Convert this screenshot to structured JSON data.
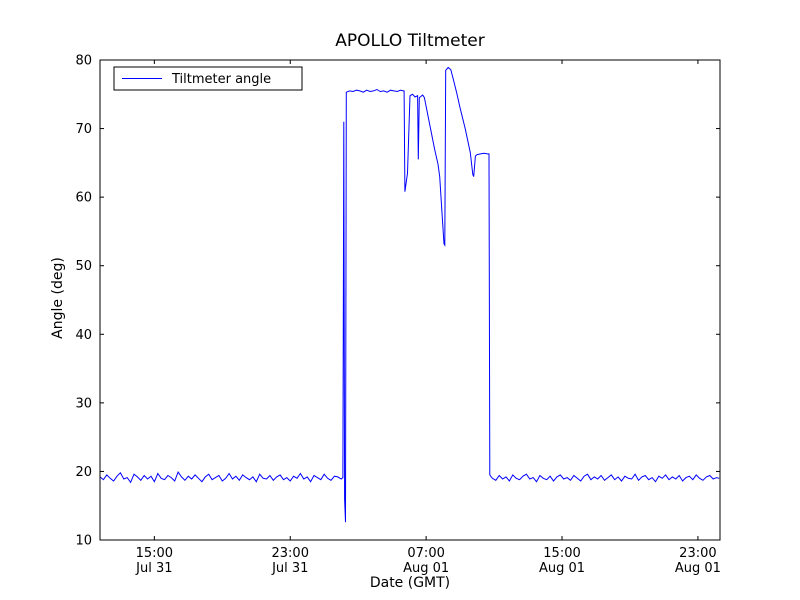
{
  "figure_title": "APOLLO Tiltmeter",
  "colors": {
    "line": "#0000ff",
    "axis": "#000000",
    "background": "#ffffff",
    "legend_fill": "#ffffff"
  },
  "chart_data": {
    "type": "line",
    "title": "APOLLO Tiltmeter",
    "xlabel": "Date (GMT)",
    "ylabel": "Angle (deg)",
    "ylim": [
      10,
      80
    ],
    "xlim_hours": [
      0,
      36.5
    ],
    "grid": false,
    "legend_position": "upper left",
    "y_ticks": [
      10,
      20,
      30,
      40,
      50,
      60,
      70,
      80
    ],
    "x_ticks": [
      {
        "hours": 3.2,
        "time": "15:00",
        "date": "Jul 31"
      },
      {
        "hours": 11.2,
        "time": "23:00",
        "date": "Jul 31"
      },
      {
        "hours": 19.2,
        "time": "07:00",
        "date": "Aug 01"
      },
      {
        "hours": 27.2,
        "time": "15:00",
        "date": "Aug 01"
      },
      {
        "hours": 35.2,
        "time": "23:00",
        "date": "Aug 01"
      }
    ],
    "series": [
      {
        "name": "Tiltmeter angle",
        "color": "#0000ff",
        "points": [
          [
            0,
            19.2
          ],
          [
            0.2,
            18.8
          ],
          [
            0.4,
            19.5
          ],
          [
            0.6,
            19.0
          ],
          [
            0.8,
            18.6
          ],
          [
            1.0,
            19.3
          ],
          [
            1.2,
            19.8
          ],
          [
            1.4,
            18.9
          ],
          [
            1.6,
            19.1
          ],
          [
            1.8,
            18.4
          ],
          [
            2.0,
            19.6
          ],
          [
            2.2,
            19.2
          ],
          [
            2.4,
            18.7
          ],
          [
            2.6,
            19.4
          ],
          [
            2.8,
            18.9
          ],
          [
            3.0,
            19.3
          ],
          [
            3.2,
            18.5
          ],
          [
            3.4,
            19.7
          ],
          [
            3.6,
            19.0
          ],
          [
            3.8,
            18.8
          ],
          [
            4.0,
            19.4
          ],
          [
            4.2,
            19.1
          ],
          [
            4.4,
            18.6
          ],
          [
            4.6,
            19.9
          ],
          [
            4.8,
            19.2
          ],
          [
            5.0,
            18.7
          ],
          [
            5.2,
            19.3
          ],
          [
            5.4,
            18.9
          ],
          [
            5.6,
            19.5
          ],
          [
            5.8,
            19.0
          ],
          [
            6.0,
            18.5
          ],
          [
            6.2,
            19.2
          ],
          [
            6.4,
            19.6
          ],
          [
            6.6,
            18.8
          ],
          [
            6.8,
            19.1
          ],
          [
            7.0,
            19.4
          ],
          [
            7.2,
            18.6
          ],
          [
            7.4,
            19.0
          ],
          [
            7.6,
            19.7
          ],
          [
            7.8,
            18.9
          ],
          [
            8.0,
            19.3
          ],
          [
            8.2,
            18.7
          ],
          [
            8.4,
            19.5
          ],
          [
            8.6,
            19.1
          ],
          [
            8.8,
            18.8
          ],
          [
            9.0,
            19.2
          ],
          [
            9.2,
            18.5
          ],
          [
            9.4,
            19.6
          ],
          [
            9.6,
            19.0
          ],
          [
            9.8,
            18.9
          ],
          [
            10.0,
            19.4
          ],
          [
            10.2,
            18.7
          ],
          [
            10.4,
            19.2
          ],
          [
            10.6,
            19.5
          ],
          [
            10.8,
            18.8
          ],
          [
            11.0,
            19.1
          ],
          [
            11.2,
            18.6
          ],
          [
            11.4,
            19.3
          ],
          [
            11.6,
            19.0
          ],
          [
            11.8,
            19.7
          ],
          [
            12.0,
            18.9
          ],
          [
            12.2,
            19.2
          ],
          [
            12.4,
            18.5
          ],
          [
            12.6,
            19.4
          ],
          [
            12.8,
            19.1
          ],
          [
            13.0,
            18.8
          ],
          [
            13.2,
            19.6
          ],
          [
            13.4,
            19.0
          ],
          [
            13.6,
            18.7
          ],
          [
            13.8,
            19.3
          ],
          [
            14.0,
            19.2
          ],
          [
            14.2,
            18.9
          ],
          [
            14.3,
            19.1
          ],
          [
            14.35,
            71.0
          ],
          [
            14.4,
            16.0
          ],
          [
            14.45,
            12.6
          ],
          [
            14.5,
            75.3
          ],
          [
            14.7,
            75.5
          ],
          [
            14.9,
            75.4
          ],
          [
            15.1,
            75.6
          ],
          [
            15.3,
            75.5
          ],
          [
            15.5,
            75.3
          ],
          [
            15.7,
            75.6
          ],
          [
            15.9,
            75.4
          ],
          [
            16.1,
            75.5
          ],
          [
            16.3,
            75.7
          ],
          [
            16.5,
            75.4
          ],
          [
            16.7,
            75.5
          ],
          [
            16.9,
            75.3
          ],
          [
            17.1,
            75.6
          ],
          [
            17.3,
            75.5
          ],
          [
            17.5,
            75.4
          ],
          [
            17.7,
            75.6
          ],
          [
            17.85,
            75.5
          ],
          [
            17.9,
            75.5
          ],
          [
            17.95,
            60.8
          ],
          [
            18.1,
            63.5
          ],
          [
            18.25,
            74.8
          ],
          [
            18.4,
            75.0
          ],
          [
            18.55,
            74.6
          ],
          [
            18.7,
            74.8
          ],
          [
            18.74,
            65.5
          ],
          [
            18.8,
            74.5
          ],
          [
            19.0,
            74.9
          ],
          [
            19.1,
            74.5
          ],
          [
            19.3,
            72.0
          ],
          [
            19.5,
            69.5
          ],
          [
            19.7,
            67.0
          ],
          [
            19.9,
            64.8
          ],
          [
            20.0,
            63.0
          ],
          [
            20.15,
            57.0
          ],
          [
            20.25,
            53.2
          ],
          [
            20.3,
            53.0
          ],
          [
            20.35,
            78.5
          ],
          [
            20.5,
            78.9
          ],
          [
            20.65,
            78.6
          ],
          [
            20.8,
            77.2
          ],
          [
            21.0,
            75.2
          ],
          [
            21.2,
            73.0
          ],
          [
            21.5,
            70.0
          ],
          [
            21.8,
            66.5
          ],
          [
            21.95,
            63.3
          ],
          [
            22.0,
            63.0
          ],
          [
            22.1,
            66.0
          ],
          [
            22.2,
            66.2
          ],
          [
            22.4,
            66.3
          ],
          [
            22.6,
            66.4
          ],
          [
            22.8,
            66.3
          ],
          [
            22.9,
            66.3
          ],
          [
            22.95,
            19.5
          ],
          [
            23.0,
            19.3
          ],
          [
            23.1,
            19.0
          ],
          [
            23.3,
            18.7
          ],
          [
            23.5,
            19.4
          ],
          [
            23.7,
            18.9
          ],
          [
            23.9,
            19.2
          ],
          [
            24.1,
            18.6
          ],
          [
            24.3,
            19.5
          ],
          [
            24.5,
            19.0
          ],
          [
            24.7,
            18.8
          ],
          [
            24.9,
            19.3
          ],
          [
            25.1,
            19.6
          ],
          [
            25.3,
            18.9
          ],
          [
            25.5,
            19.1
          ],
          [
            25.7,
            18.5
          ],
          [
            25.9,
            19.4
          ],
          [
            26.1,
            19.0
          ],
          [
            26.3,
            18.8
          ],
          [
            26.5,
            19.3
          ],
          [
            26.7,
            18.6
          ],
          [
            26.9,
            19.2
          ],
          [
            27.1,
            19.5
          ],
          [
            27.3,
            18.9
          ],
          [
            27.5,
            19.1
          ],
          [
            27.7,
            18.7
          ],
          [
            27.9,
            19.4
          ],
          [
            28.1,
            19.0
          ],
          [
            28.3,
            18.6
          ],
          [
            28.5,
            19.3
          ],
          [
            28.7,
            19.6
          ],
          [
            28.9,
            18.8
          ],
          [
            29.1,
            19.2
          ],
          [
            29.3,
            18.9
          ],
          [
            29.5,
            19.4
          ],
          [
            29.7,
            18.7
          ],
          [
            29.9,
            19.1
          ],
          [
            30.1,
            19.5
          ],
          [
            30.3,
            18.8
          ],
          [
            30.5,
            19.2
          ],
          [
            30.7,
            18.6
          ],
          [
            30.9,
            19.3
          ],
          [
            31.1,
            19.0
          ],
          [
            31.3,
            18.9
          ],
          [
            31.5,
            19.6
          ],
          [
            31.7,
            18.7
          ],
          [
            31.9,
            19.2
          ],
          [
            32.1,
            19.4
          ],
          [
            32.3,
            18.8
          ],
          [
            32.5,
            19.1
          ],
          [
            32.7,
            18.5
          ],
          [
            32.9,
            19.3
          ],
          [
            33.1,
            19.0
          ],
          [
            33.3,
            19.5
          ],
          [
            33.5,
            18.8
          ],
          [
            33.7,
            19.2
          ],
          [
            33.9,
            18.9
          ],
          [
            34.1,
            19.4
          ],
          [
            34.3,
            18.6
          ],
          [
            34.5,
            19.1
          ],
          [
            34.7,
            19.3
          ],
          [
            34.9,
            18.8
          ],
          [
            35.1,
            19.5
          ],
          [
            35.3,
            19.0
          ],
          [
            35.5,
            18.7
          ],
          [
            35.7,
            19.2
          ],
          [
            35.9,
            19.4
          ],
          [
            36.1,
            18.9
          ],
          [
            36.3,
            19.1
          ],
          [
            36.45,
            19.0
          ]
        ]
      }
    ]
  }
}
